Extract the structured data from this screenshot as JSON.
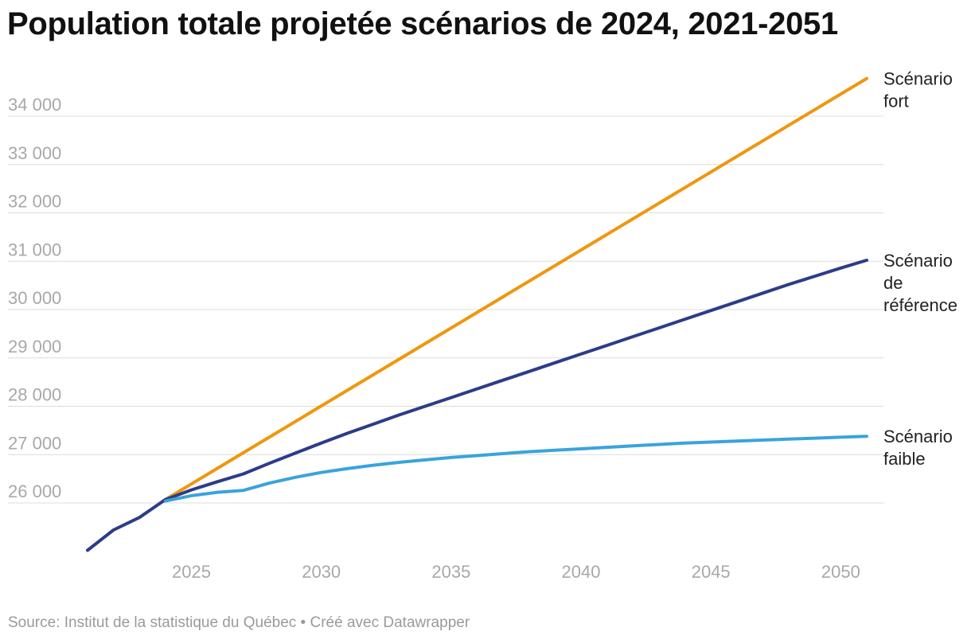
{
  "title": "Population totale projetée scénarios de 2024, 2021-2051",
  "footer": {
    "source": "Source: Institut de la statistique du Québec",
    "separator": " • ",
    "credit": "Créé avec Datawrapper"
  },
  "chart_data": {
    "type": "line",
    "title": "Population totale projetée scénarios de 2024, 2021-2051",
    "xlabel": "",
    "ylabel": "",
    "xlim": [
      2021,
      2051
    ],
    "ylim": [
      25000,
      34800
    ],
    "grid": true,
    "x_ticks": [
      2025,
      2030,
      2035,
      2040,
      2045,
      2050
    ],
    "y_ticks": [
      26000,
      27000,
      28000,
      29000,
      30000,
      31000,
      32000,
      33000,
      34000
    ],
    "y_tick_labels": [
      "26 000",
      "27 000",
      "28 000",
      "29 000",
      "30 000",
      "31 000",
      "32 000",
      "33 000",
      "34 000"
    ],
    "series": [
      {
        "name": "Scénario fort",
        "label_lines": [
          "Scénario",
          "fort"
        ],
        "color": "#f0960e",
        "x": [
          2024,
          2051
        ],
        "y": [
          26070,
          34780
        ]
      },
      {
        "name": "Scénario de référence",
        "label_lines": [
          "Scénario",
          "de",
          "référence"
        ],
        "color": "#2d3c87",
        "x": [
          2021,
          2022,
          2023,
          2024,
          2025,
          2026,
          2027,
          2028,
          2029,
          2030,
          2031,
          2032,
          2033,
          2034,
          2035,
          2036,
          2037,
          2038,
          2039,
          2040,
          2041,
          2042,
          2043,
          2044,
          2045,
          2046,
          2047,
          2048,
          2049,
          2050,
          2051
        ],
        "y": [
          25020,
          25440,
          25700,
          26070,
          26270,
          26440,
          26600,
          26820,
          27030,
          27240,
          27440,
          27630,
          27820,
          28000,
          28180,
          28360,
          28540,
          28720,
          28900,
          29080,
          29260,
          29440,
          29620,
          29800,
          29980,
          30160,
          30340,
          30520,
          30690,
          30860,
          31020
        ]
      },
      {
        "name": "Scénario faible",
        "label_lines": [
          "Scénario",
          "faible"
        ],
        "color": "#3aa3dd",
        "x": [
          2024,
          2025,
          2026,
          2027,
          2028,
          2029,
          2030,
          2031,
          2032,
          2033,
          2034,
          2035,
          2036,
          2037,
          2038,
          2039,
          2040,
          2041,
          2042,
          2043,
          2044,
          2045,
          2046,
          2047,
          2048,
          2049,
          2050,
          2051
        ],
        "y": [
          26040,
          26150,
          26220,
          26260,
          26410,
          26530,
          26630,
          26710,
          26780,
          26840,
          26890,
          26940,
          26980,
          27020,
          27060,
          27090,
          27120,
          27150,
          27180,
          27210,
          27240,
          27260,
          27280,
          27300,
          27320,
          27340,
          27360,
          27380
        ]
      }
    ]
  }
}
